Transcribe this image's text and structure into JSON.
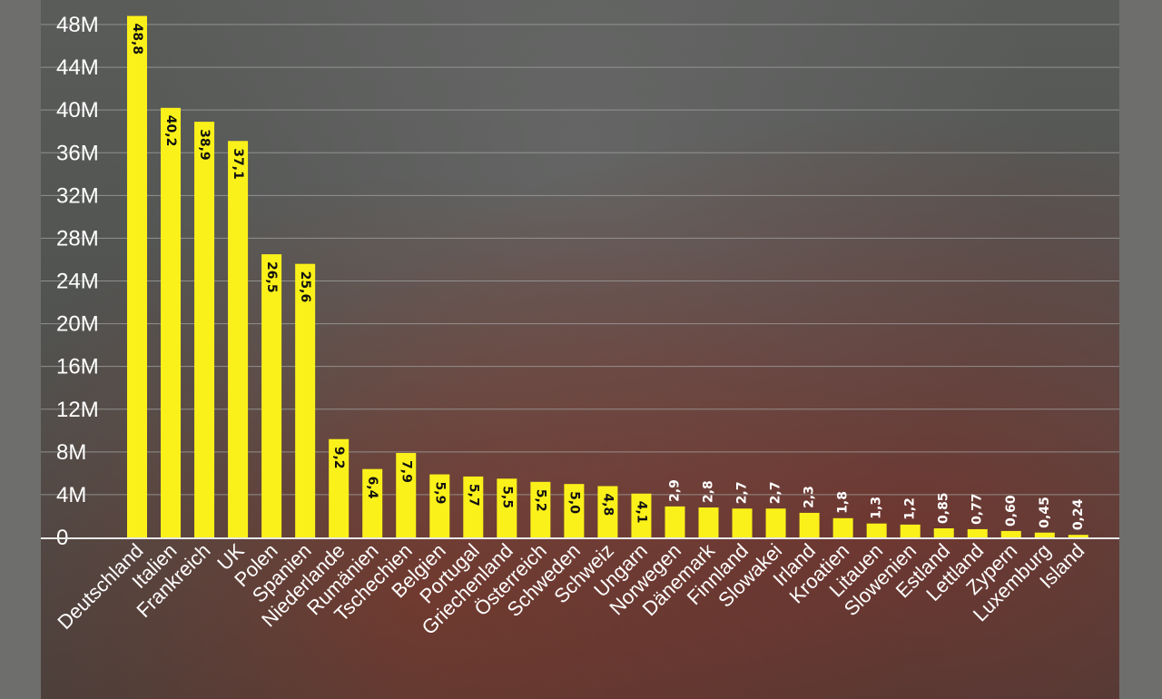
{
  "colors": {
    "bar": "#fbf11a",
    "grid": "#a3a5a3",
    "label_inside": "#111111",
    "label_outside": "#ffffff"
  },
  "chart_data": {
    "type": "bar",
    "title": "",
    "xlabel": "",
    "ylabel": "",
    "ylim": [
      0,
      48000000
    ],
    "y_ticks": [
      0,
      4000000,
      8000000,
      12000000,
      16000000,
      20000000,
      24000000,
      28000000,
      32000000,
      36000000,
      40000000,
      44000000,
      48000000
    ],
    "y_tick_labels": [
      "0",
      "4M",
      "8M",
      "12M",
      "16M",
      "20M",
      "24M",
      "28M",
      "32M",
      "36M",
      "40M",
      "44M",
      "48M"
    ],
    "grid": true,
    "legend": "none",
    "categories": [
      "Deutschland",
      "Italien",
      "Frankreich",
      "UK",
      "Polen",
      "Spanien",
      "Niederlande",
      "Rumänien",
      "Tschechien",
      "Belgien",
      "Portugal",
      "Griechenland",
      "Österreich",
      "Schweden",
      "Schweiz",
      "Ungarn",
      "Norwegen",
      "Dänemark",
      "Finnland",
      "Slowakei",
      "Irland",
      "Kroatien",
      "Litauen",
      "Slowenien",
      "Estland",
      "Lettland",
      "Zypern",
      "Luxemburg",
      "Island"
    ],
    "values": [
      48800000,
      40200000,
      38900000,
      37100000,
      26500000,
      25600000,
      9200000,
      6400000,
      7900000,
      5900000,
      5700000,
      5500000,
      5200000,
      5000000,
      4800000,
      4100000,
      2900000,
      2800000,
      2700000,
      2700000,
      2300000,
      1800000,
      1300000,
      1200000,
      850000,
      770000,
      600000,
      450000,
      240000
    ],
    "value_labels": [
      "48,8",
      "40,2",
      "38,9",
      "37,1",
      "26,5",
      "25,6",
      "9,2",
      "6,4",
      "7,9",
      "5,9",
      "5,7",
      "5,5",
      "5,2",
      "5,0",
      "4,8",
      "4,1",
      "2,9",
      "2,8",
      "2,7",
      "2,7",
      "2,3",
      "1,8",
      "1,3",
      "1,2",
      "0,85",
      "0,77",
      "0,60",
      "0,45",
      "0,24"
    ]
  }
}
